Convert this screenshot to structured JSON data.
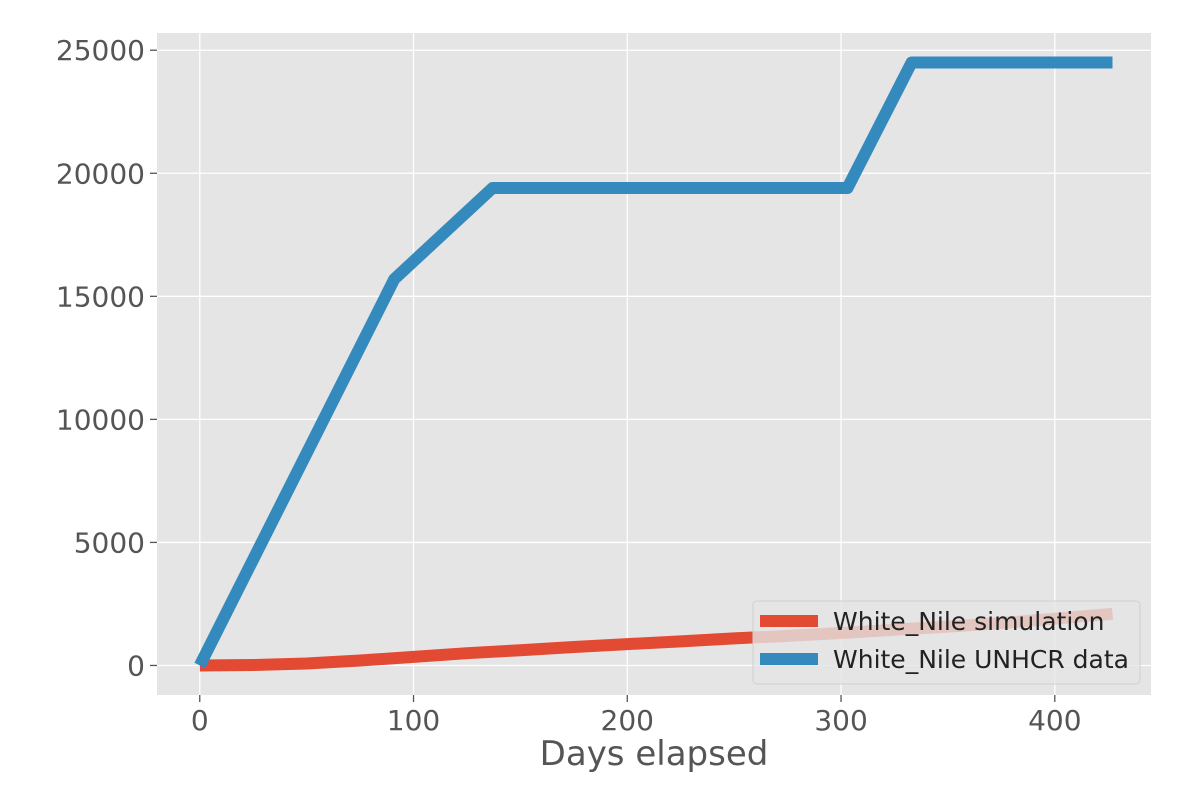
{
  "chart_data": {
    "type": "line",
    "title": "",
    "xlabel": "Days elapsed",
    "ylabel": "",
    "xlim": [
      -20,
      445
    ],
    "ylim": [
      -1200,
      25700
    ],
    "xticks": [
      0,
      100,
      200,
      300,
      400
    ],
    "yticks": [
      0,
      5000,
      10000,
      15000,
      20000,
      25000
    ],
    "grid": true,
    "legend_position": "lower-right",
    "background": "#e5e5e5",
    "series": [
      {
        "name": "White_Nile simulation",
        "color": "#e24a33",
        "x": [
          0,
          25,
          50,
          75,
          100,
          125,
          150,
          175,
          200,
          225,
          250,
          275,
          300,
          325,
          350,
          375,
          400,
          427
        ],
        "y": [
          0,
          20,
          80,
          200,
          350,
          500,
          620,
          750,
          870,
          980,
          1100,
          1200,
          1320,
          1450,
          1580,
          1720,
          1900,
          2100
        ]
      },
      {
        "name": "White_Nile UNHCR data",
        "color": "#348abd",
        "x": [
          0,
          91,
          137,
          303,
          333,
          427
        ],
        "y": [
          0,
          15700,
          19400,
          19400,
          24500,
          24500
        ]
      }
    ]
  }
}
